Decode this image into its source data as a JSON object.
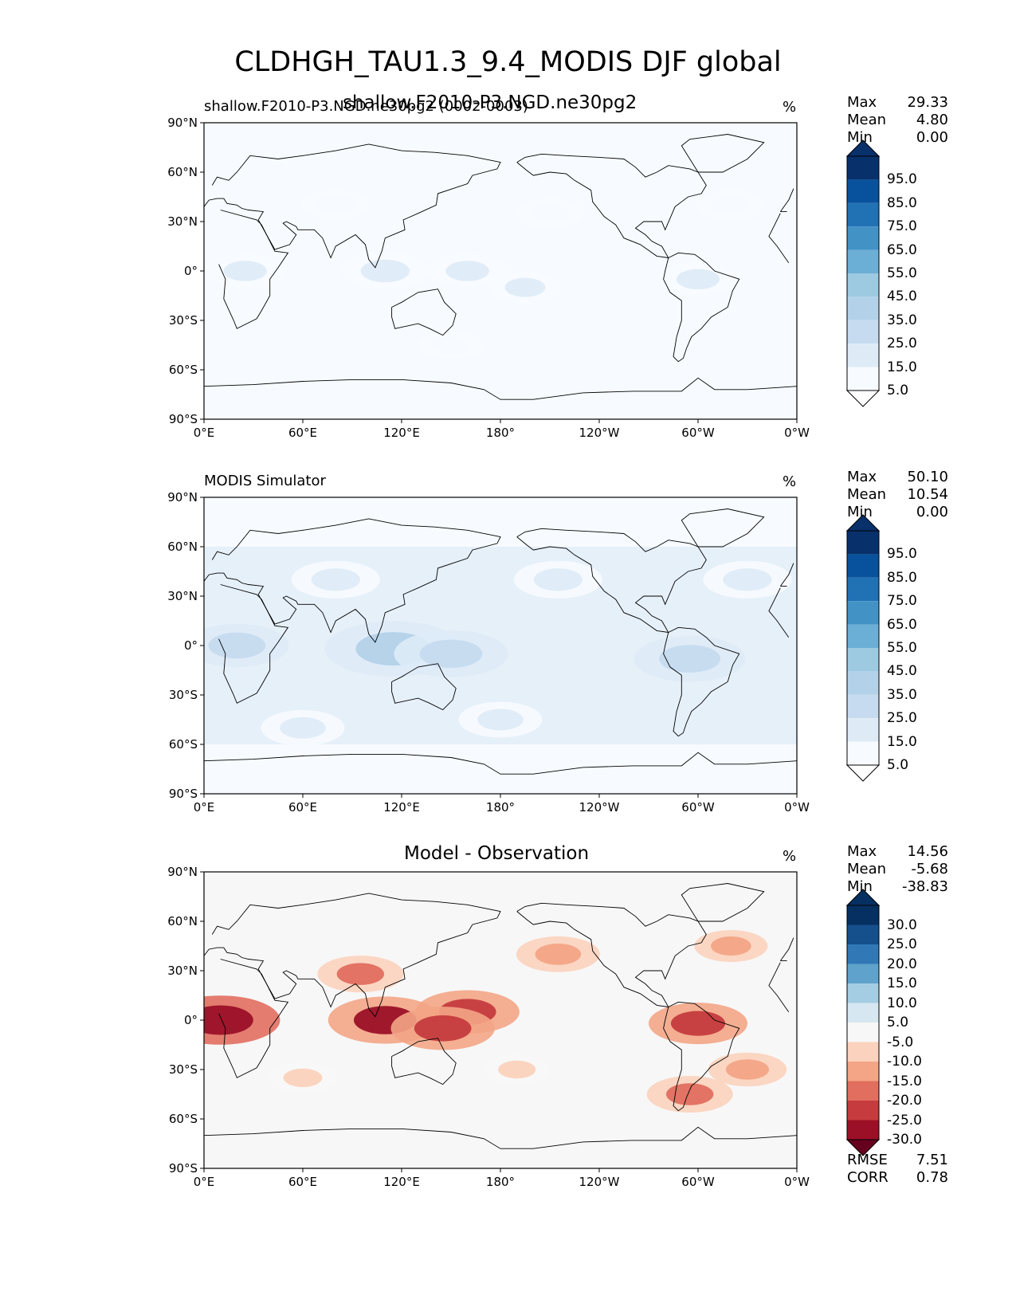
{
  "figure": {
    "title": "CLDHGH_TAU1.3_9.4_MODIS DJF global",
    "overlay_text": "shallow.F2010-P3.NGD.ne30pg2"
  },
  "colors": {
    "blues": [
      "#f7fbff",
      "#deebf7",
      "#c6dbef",
      "#b3d2e9",
      "#9ecae1",
      "#6baed6",
      "#4292c6",
      "#2171b5",
      "#08519c",
      "#08306b"
    ],
    "rdbu": [
      "#67001f",
      "#9b1027",
      "#c53b3e",
      "#e16e5f",
      "#f3a586",
      "#fbd2bd",
      "#f7f7f7",
      "#d6e7f1",
      "#a4cde3",
      "#5fa2cb",
      "#3079b6",
      "#15508d",
      "#053061"
    ],
    "coast": "#000000",
    "axis": "#000000"
  },
  "chart_data": [
    {
      "type": "heatmap",
      "panel": "test",
      "title_left": "shallow.F2010-P3.NGD.ne30pg2 (0002-0003)",
      "title_center": "",
      "units": "%",
      "stats": {
        "labels": [
          "Max",
          "Mean",
          "Min"
        ],
        "values": [
          "29.33",
          "4.80",
          "0.00"
        ]
      },
      "colorbar": {
        "levels": [
          "95.0",
          "85.0",
          "75.0",
          "65.0",
          "55.0",
          "45.0",
          "35.0",
          "25.0",
          "15.0",
          "5.0"
        ],
        "extend": "both"
      },
      "x_ticks": [
        "0°E",
        "60°E",
        "120°E",
        "180°",
        "120°W",
        "60°W",
        "0°W"
      ],
      "y_ticks": [
        "90°N",
        "60°N",
        "30°N",
        "0°",
        "30°S",
        "60°S",
        "90°S"
      ],
      "xlim": [
        0,
        360
      ],
      "ylim": [
        -90,
        90
      ],
      "field_regions": [
        {
          "lon": 25,
          "lat": 0,
          "value": 12
        },
        {
          "lon": 110,
          "lat": 0,
          "value": 16
        },
        {
          "lon": 160,
          "lat": 0,
          "value": 12
        },
        {
          "lon": 195,
          "lat": -10,
          "value": 10
        },
        {
          "lon": 300,
          "lat": -5,
          "value": 12
        },
        {
          "lon": 80,
          "lat": 40,
          "value": 8
        },
        {
          "lon": 210,
          "lat": 35,
          "value": 8
        },
        {
          "lon": 320,
          "lat": 40,
          "value": 8
        },
        {
          "lon": 150,
          "lat": -45,
          "value": 7
        }
      ]
    },
    {
      "type": "heatmap",
      "panel": "reference",
      "title_left": "MODIS Simulator",
      "title_center": "",
      "units": "%",
      "stats": {
        "labels": [
          "Max",
          "Mean",
          "Min"
        ],
        "values": [
          "50.10",
          "10.54",
          "0.00"
        ]
      },
      "colorbar": {
        "levels": [
          "95.0",
          "85.0",
          "75.0",
          "65.0",
          "55.0",
          "45.0",
          "35.0",
          "25.0",
          "15.0",
          "5.0"
        ],
        "extend": "both"
      },
      "x_ticks": [
        "0°E",
        "60°E",
        "120°E",
        "180°",
        "120°W",
        "60°W",
        "0°W"
      ],
      "y_ticks": [
        "90°N",
        "60°N",
        "30°N",
        "0°",
        "30°S",
        "60°S",
        "90°S"
      ],
      "xlim": [
        0,
        360
      ],
      "ylim": [
        -90,
        90
      ],
      "field_regions": [
        {
          "lon": 20,
          "lat": 0,
          "value": 22
        },
        {
          "lon": 115,
          "lat": -2,
          "value": 35
        },
        {
          "lon": 150,
          "lat": -5,
          "value": 26
        },
        {
          "lon": 295,
          "lat": -8,
          "value": 25
        },
        {
          "lon": 80,
          "lat": 40,
          "value": 16
        },
        {
          "lon": 215,
          "lat": 40,
          "value": 16
        },
        {
          "lon": 330,
          "lat": 40,
          "value": 16
        },
        {
          "lon": 180,
          "lat": -45,
          "value": 14
        },
        {
          "lon": 60,
          "lat": -50,
          "value": 14
        }
      ]
    },
    {
      "type": "heatmap",
      "panel": "difference",
      "title_left": "",
      "title_center": "Model - Observation",
      "units": "%",
      "stats": {
        "labels": [
          "Max",
          "Mean",
          "Min"
        ],
        "values": [
          "14.56",
          "-5.68",
          "-38.83"
        ]
      },
      "extra_stats": {
        "labels": [
          "RMSE",
          "CORR"
        ],
        "values": [
          "7.51",
          "0.78"
        ]
      },
      "colorbar": {
        "levels": [
          "30.0",
          "25.0",
          "20.0",
          "15.0",
          "10.0",
          "5.0",
          "-5.0",
          "-10.0",
          "-15.0",
          "-20.0",
          "-25.0",
          "-30.0"
        ],
        "extend": "both"
      },
      "x_ticks": [
        "0°E",
        "60°E",
        "120°E",
        "180°",
        "120°W",
        "60°W",
        "0°W"
      ],
      "y_ticks": [
        "90°N",
        "60°N",
        "30°N",
        "0°",
        "30°S",
        "60°S",
        "90°S"
      ],
      "xlim": [
        0,
        360
      ],
      "ylim": [
        -90,
        90
      ],
      "field_regions": [
        {
          "lon": 10,
          "lat": 0,
          "value": -28
        },
        {
          "lon": 110,
          "lat": 0,
          "value": -26
        },
        {
          "lon": 160,
          "lat": 5,
          "value": -22
        },
        {
          "lon": 145,
          "lat": -5,
          "value": -22
        },
        {
          "lon": 300,
          "lat": -2,
          "value": -20
        },
        {
          "lon": 95,
          "lat": 28,
          "value": -15
        },
        {
          "lon": 215,
          "lat": 40,
          "value": -14
        },
        {
          "lon": 320,
          "lat": 45,
          "value": -10
        },
        {
          "lon": 330,
          "lat": -30,
          "value": -12
        },
        {
          "lon": 60,
          "lat": -35,
          "value": -9
        },
        {
          "lon": 295,
          "lat": -45,
          "value": -15
        },
        {
          "lon": 190,
          "lat": -30,
          "value": -8
        }
      ]
    }
  ]
}
